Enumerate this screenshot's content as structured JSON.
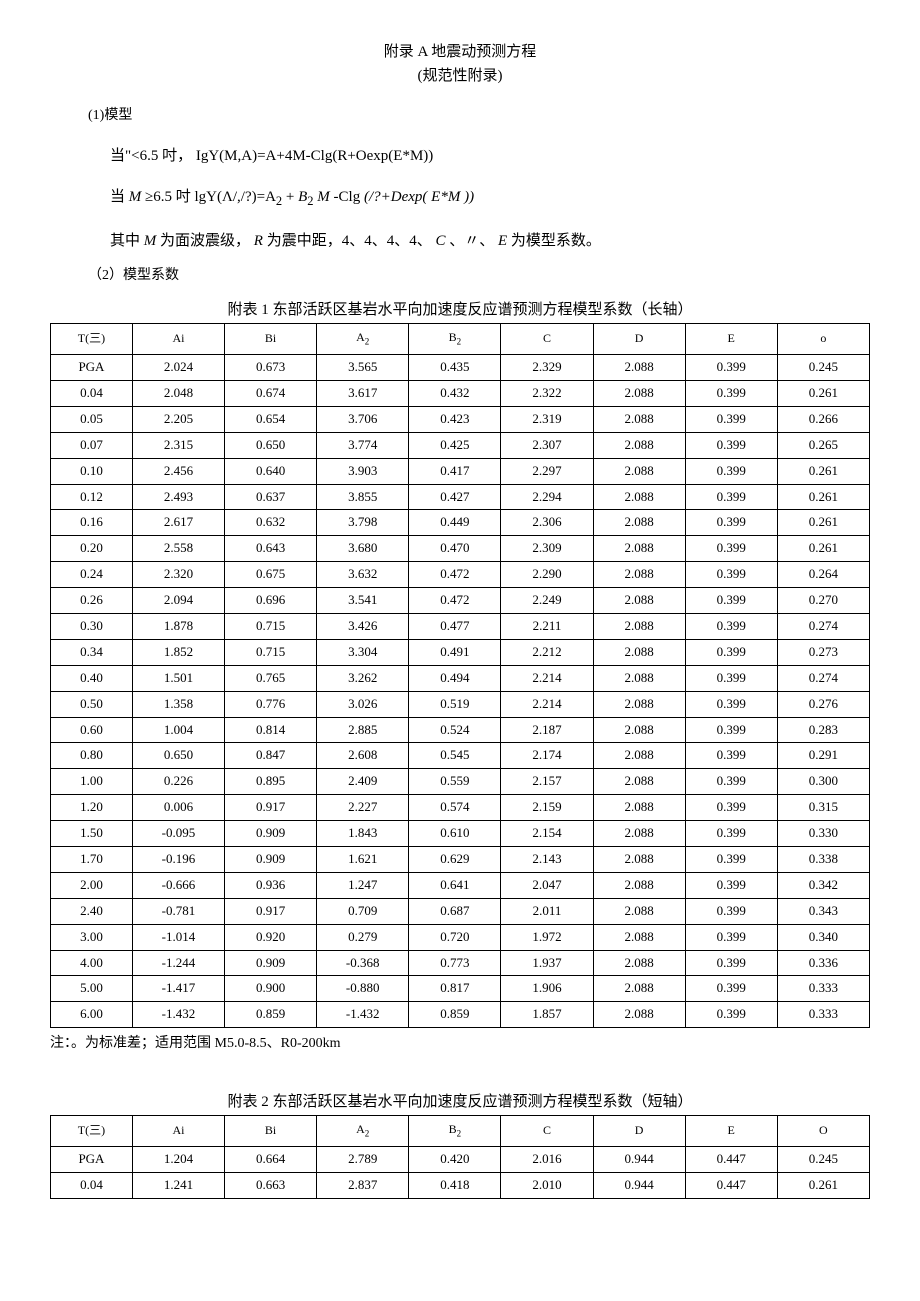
{
  "header": {
    "title_line1": "附录 A 地震动预测方程",
    "title_line2": "(规范性附录)"
  },
  "sections": {
    "s1": "(1)模型",
    "s2": "（2）模型系数"
  },
  "formulas": {
    "f1_prefix": "当\"<6.5 吋，",
    "f1_body": "IgY(M,A)=A+4M-Clg(R+Oexp(E*M))",
    "f2_prefix": "当 ",
    "f2_m": "M",
    "f2_cond": "≥6.5 吋 ",
    "f2_body_a": "lgY(Λ/,/?)=A",
    "f2_body_b": "+",
    "f2_body_b2": "B",
    "f2_body_m": "M",
    "f2_body_c": "-Clg",
    "f2_body_d": "(/?+Dexp(",
    "f2_body_e": "E*M",
    "f2_body_f": "))",
    "desc_a": "其中 ",
    "desc_m": "M",
    "desc_b": " 为面波震级，",
    "desc_r": "R",
    "desc_c": " 为震中距，4、4、4、4、",
    "desc_cc": "C",
    "desc_d": "、〃、",
    "desc_e": "E",
    "desc_f": " 为模型系数。"
  },
  "table1": {
    "caption": "附表 1 东部活跃区基岩水平向加速度反应谱预测方程模型系数（长轴）",
    "columns": [
      "T(三)",
      "Ai",
      "Bi",
      "A₂",
      "B₂",
      "C",
      "D",
      "E",
      "o"
    ],
    "column_headers": [
      {
        "main": "T(三)",
        "sub": ""
      },
      {
        "main": "Ai",
        "sub": ""
      },
      {
        "main": "Bi",
        "sub": ""
      },
      {
        "main": "A",
        "sub": "2"
      },
      {
        "main": "B",
        "sub": "2"
      },
      {
        "main": "C",
        "sub": ""
      },
      {
        "main": "D",
        "sub": ""
      },
      {
        "main": "E",
        "sub": ""
      },
      {
        "main": "o",
        "sub": ""
      }
    ],
    "rows": [
      [
        "PGA",
        "2.024",
        "0.673",
        "3.565",
        "0.435",
        "2.329",
        "2.088",
        "0.399",
        "0.245"
      ],
      [
        "0.04",
        "2.048",
        "0.674",
        "3.617",
        "0.432",
        "2.322",
        "2.088",
        "0.399",
        "0.261"
      ],
      [
        "0.05",
        "2.205",
        "0.654",
        "3.706",
        "0.423",
        "2.319",
        "2.088",
        "0.399",
        "0.266"
      ],
      [
        "0.07",
        "2.315",
        "0.650",
        "3.774",
        "0.425",
        "2.307",
        "2.088",
        "0.399",
        "0.265"
      ],
      [
        "0.10",
        "2.456",
        "0.640",
        "3.903",
        "0.417",
        "2.297",
        "2.088",
        "0.399",
        "0.261"
      ],
      [
        "0.12",
        "2.493",
        "0.637",
        "3.855",
        "0.427",
        "2.294",
        "2.088",
        "0.399",
        "0.261"
      ],
      [
        "0.16",
        "2.617",
        "0.632",
        "3.798",
        "0.449",
        "2.306",
        "2.088",
        "0.399",
        "0.261"
      ],
      [
        "0.20",
        "2.558",
        "0.643",
        "3.680",
        "0.470",
        "2.309",
        "2.088",
        "0.399",
        "0.261"
      ],
      [
        "0.24",
        "2.320",
        "0.675",
        "3.632",
        "0.472",
        "2.290",
        "2.088",
        "0.399",
        "0.264"
      ],
      [
        "0.26",
        "2.094",
        "0.696",
        "3.541",
        "0.472",
        "2.249",
        "2.088",
        "0.399",
        "0.270"
      ],
      [
        "0.30",
        "1.878",
        "0.715",
        "3.426",
        "0.477",
        "2.211",
        "2.088",
        "0.399",
        "0.274"
      ],
      [
        "0.34",
        "1.852",
        "0.715",
        "3.304",
        "0.491",
        "2.212",
        "2.088",
        "0.399",
        "0.273"
      ],
      [
        "0.40",
        "1.501",
        "0.765",
        "3.262",
        "0.494",
        "2.214",
        "2.088",
        "0.399",
        "0.274"
      ],
      [
        "0.50",
        "1.358",
        "0.776",
        "3.026",
        "0.519",
        "2.214",
        "2.088",
        "0.399",
        "0.276"
      ],
      [
        "0.60",
        "1.004",
        "0.814",
        "2.885",
        "0.524",
        "2.187",
        "2.088",
        "0.399",
        "0.283"
      ],
      [
        "0.80",
        "0.650",
        "0.847",
        "2.608",
        "0.545",
        "2.174",
        "2.088",
        "0.399",
        "0.291"
      ],
      [
        "1.00",
        "0.226",
        "0.895",
        "2.409",
        "0.559",
        "2.157",
        "2.088",
        "0.399",
        "0.300"
      ],
      [
        "1.20",
        "0.006",
        "0.917",
        "2.227",
        "0.574",
        "2.159",
        "2.088",
        "0.399",
        "0.315"
      ],
      [
        "1.50",
        "-0.095",
        "0.909",
        "1.843",
        "0.610",
        "2.154",
        "2.088",
        "0.399",
        "0.330"
      ],
      [
        "1.70",
        "-0.196",
        "0.909",
        "1.621",
        "0.629",
        "2.143",
        "2.088",
        "0.399",
        "0.338"
      ],
      [
        "2.00",
        "-0.666",
        "0.936",
        "1.247",
        "0.641",
        "2.047",
        "2.088",
        "0.399",
        "0.342"
      ],
      [
        "2.40",
        "-0.781",
        "0.917",
        "0.709",
        "0.687",
        "2.011",
        "2.088",
        "0.399",
        "0.343"
      ],
      [
        "3.00",
        "-1.014",
        "0.920",
        "0.279",
        "0.720",
        "1.972",
        "2.088",
        "0.399",
        "0.340"
      ],
      [
        "4.00",
        "-1.244",
        "0.909",
        "-0.368",
        "0.773",
        "1.937",
        "2.088",
        "0.399",
        "0.336"
      ],
      [
        "5.00",
        "-1.417",
        "0.900",
        "-0.880",
        "0.817",
        "1.906",
        "2.088",
        "0.399",
        "0.333"
      ],
      [
        "6.00",
        "-1.432",
        "0.859",
        "-1.432",
        "0.859",
        "1.857",
        "2.088",
        "0.399",
        "0.333"
      ]
    ],
    "note": "注：。为标准差；适用范围 M5.0-8.5、R0-200km"
  },
  "table2": {
    "caption": "附表 2 东部活跃区基岩水平向加速度反应谱预测方程模型系数（短轴）",
    "column_headers": [
      {
        "main": "T(三)",
        "sub": ""
      },
      {
        "main": "Ai",
        "sub": ""
      },
      {
        "main": "Bi",
        "sub": ""
      },
      {
        "main": "A",
        "sub": "2"
      },
      {
        "main": "B",
        "sub": "2"
      },
      {
        "main": "C",
        "sub": ""
      },
      {
        "main": "D",
        "sub": ""
      },
      {
        "main": "E",
        "sub": ""
      },
      {
        "main": "O",
        "sub": ""
      }
    ],
    "rows": [
      [
        "PGA",
        "1.204",
        "0.664",
        "2.789",
        "0.420",
        "2.016",
        "0.944",
        "0.447",
        "0.245"
      ],
      [
        "0.04",
        "1.241",
        "0.663",
        "2.837",
        "0.418",
        "2.010",
        "0.944",
        "0.447",
        "0.261"
      ]
    ]
  },
  "style": {
    "background_color": "#ffffff",
    "text_color": "#000000",
    "border_color": "#000000",
    "body_fontsize": 14,
    "header_fontsize": 12,
    "cell_fontsize": 13
  }
}
